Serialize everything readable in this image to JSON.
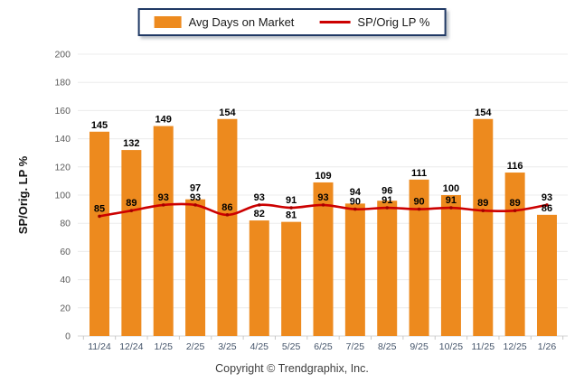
{
  "legend": {
    "series": [
      {
        "label": "Avg Days on Market",
        "swatch": "bar"
      },
      {
        "label": "SP/Orig LP %",
        "swatch": "line"
      }
    ]
  },
  "y_axis_title": "SP/Orig. LP %",
  "footer": "Copyright © Trendgraphix, Inc.",
  "colors": {
    "bar": "#ED8A1E",
    "line": "#CC0000",
    "marker": "#A30000",
    "grid": "#ECECEC",
    "axis": "#D6D6D6",
    "tick": "#C8C8C8",
    "x_tick_label": "#44546A",
    "y_tick_label": "#595959",
    "value_label": "#000000",
    "legend_border": "#1F3864"
  },
  "chart_data": {
    "type": "combo (bar + line)",
    "title": "",
    "xlabel": "",
    "ylabel": "SP/Orig. LP %",
    "categories": [
      "11/24",
      "12/24",
      "1/25",
      "2/25",
      "3/25",
      "4/25",
      "5/25",
      "6/25",
      "7/25",
      "8/25",
      "9/25",
      "10/25",
      "11/25",
      "12/25",
      "1/26"
    ],
    "series": [
      {
        "name": "Avg Days on Market",
        "type": "bar",
        "values": [
          145,
          132,
          149,
          97,
          154,
          82,
          81,
          109,
          94,
          96,
          111,
          100,
          154,
          116,
          86
        ]
      },
      {
        "name": "SP/Orig LP %",
        "type": "line",
        "values": [
          85,
          89,
          93,
          93,
          86,
          93,
          91,
          93,
          90,
          91,
          90,
          91,
          89,
          89,
          93
        ]
      }
    ],
    "ylim": [
      0,
      200
    ],
    "ytick_step": 20,
    "grid": true,
    "legend_position": "top-center",
    "data_labels": true
  }
}
